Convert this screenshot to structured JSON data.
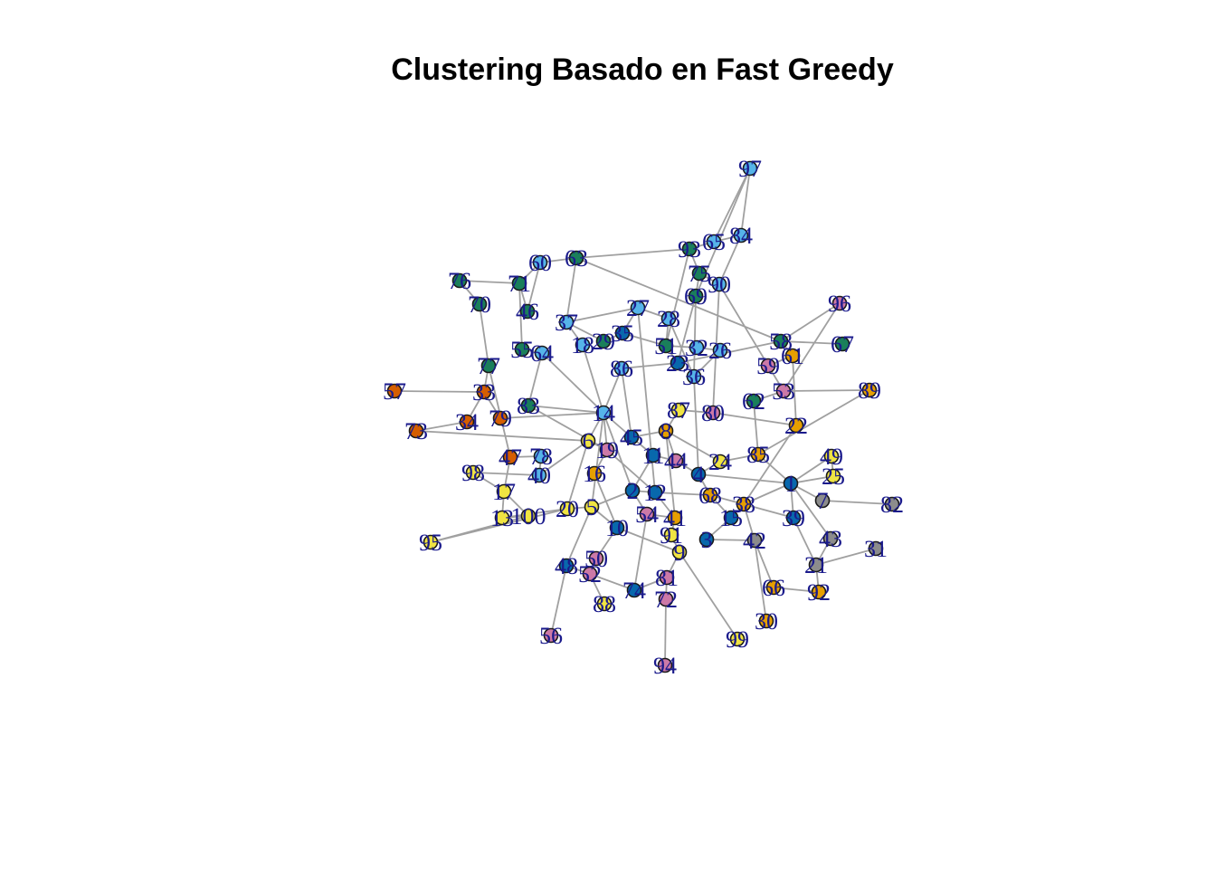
{
  "title": "Clustering Basado en Fast Greedy",
  "colors": {
    "c1": "#56b4e9",
    "c2": "#1a7f5a",
    "c3": "#d55e00",
    "c4": "#f0e442",
    "c5": "#0868ac",
    "c6": "#cc79a7",
    "c7": "#e69f00",
    "c8": "#8c8c8c",
    "edge": "#a0a0a0",
    "label": "#1a1a8c"
  },
  "nodes": [
    {
      "id": "97",
      "c": "c1"
    },
    {
      "id": "84",
      "c": "c1"
    },
    {
      "id": "65",
      "c": "c1"
    },
    {
      "id": "93",
      "c": "c2"
    },
    {
      "id": "60",
      "c": "c1"
    },
    {
      "id": "63",
      "c": "c2"
    },
    {
      "id": "75",
      "c": "c2"
    },
    {
      "id": "90",
      "c": "c1"
    },
    {
      "id": "76",
      "c": "c2"
    },
    {
      "id": "71",
      "c": "c2"
    },
    {
      "id": "69",
      "c": "c2"
    },
    {
      "id": "96",
      "c": "c6"
    },
    {
      "id": "70",
      "c": "c2"
    },
    {
      "id": "46",
      "c": "c2"
    },
    {
      "id": "27",
      "c": "c1"
    },
    {
      "id": "37",
      "c": "c1"
    },
    {
      "id": "28",
      "c": "c1"
    },
    {
      "id": "35",
      "c": "c5"
    },
    {
      "id": "58",
      "c": "c2"
    },
    {
      "id": "67",
      "c": "c2"
    },
    {
      "id": "55",
      "c": "c2"
    },
    {
      "id": "64",
      "c": "c1"
    },
    {
      "id": "18",
      "c": "c1"
    },
    {
      "id": "29",
      "c": "c2"
    },
    {
      "id": "51",
      "c": "c2"
    },
    {
      "id": "32",
      "c": "c1"
    },
    {
      "id": "26",
      "c": "c1"
    },
    {
      "id": "23",
      "c": "c5"
    },
    {
      "id": "59",
      "c": "c6"
    },
    {
      "id": "61",
      "c": "c7"
    },
    {
      "id": "77",
      "c": "c2"
    },
    {
      "id": "86",
      "c": "c1"
    },
    {
      "id": "36",
      "c": "c1"
    },
    {
      "id": "57",
      "c": "c3"
    },
    {
      "id": "33",
      "c": "c3"
    },
    {
      "id": "53",
      "c": "c6"
    },
    {
      "id": "89",
      "c": "c7"
    },
    {
      "id": "83",
      "c": "c2"
    },
    {
      "id": "14",
      "c": "c1"
    },
    {
      "id": "87",
      "c": "c4"
    },
    {
      "id": "80",
      "c": "c6"
    },
    {
      "id": "62",
      "c": "c2"
    },
    {
      "id": "34",
      "c": "c3"
    },
    {
      "id": "79",
      "c": "c3"
    },
    {
      "id": "22",
      "c": "c7"
    },
    {
      "id": "73",
      "c": "c3"
    },
    {
      "id": "8",
      "c": "c7"
    },
    {
      "id": "45",
      "c": "c5"
    },
    {
      "id": "6",
      "c": "c4"
    },
    {
      "id": "19",
      "c": "c6"
    },
    {
      "id": "47",
      "c": "c3"
    },
    {
      "id": "78",
      "c": "c1"
    },
    {
      "id": "11",
      "c": "c5"
    },
    {
      "id": "44",
      "c": "c6"
    },
    {
      "id": "85",
      "c": "c7"
    },
    {
      "id": "49",
      "c": "c4"
    },
    {
      "id": "98",
      "c": "c4"
    },
    {
      "id": "40",
      "c": "c1"
    },
    {
      "id": "24",
      "c": "c4"
    },
    {
      "id": "4",
      "c": "c5"
    },
    {
      "id": "16",
      "c": "c7"
    },
    {
      "id": "1",
      "c": "c5"
    },
    {
      "id": "25",
      "c": "c4"
    },
    {
      "id": "17",
      "c": "c4"
    },
    {
      "id": "2",
      "c": "c5"
    },
    {
      "id": "12",
      "c": "c5"
    },
    {
      "id": "68",
      "c": "c7"
    },
    {
      "id": "7",
      "c": "c8"
    },
    {
      "id": "82",
      "c": "c8"
    },
    {
      "id": "20",
      "c": "c4"
    },
    {
      "id": "5",
      "c": "c4"
    },
    {
      "id": "38",
      "c": "c7"
    },
    {
      "id": "13",
      "c": "c4"
    },
    {
      "id": "100",
      "c": "c4"
    },
    {
      "id": "54",
      "c": "c6"
    },
    {
      "id": "41",
      "c": "c7"
    },
    {
      "id": "15",
      "c": "c5"
    },
    {
      "id": "39",
      "c": "c5"
    },
    {
      "id": "10",
      "c": "c5"
    },
    {
      "id": "91",
      "c": "c4"
    },
    {
      "id": "95",
      "c": "c4"
    },
    {
      "id": "3",
      "c": "c5"
    },
    {
      "id": "42",
      "c": "c8"
    },
    {
      "id": "43",
      "c": "c8"
    },
    {
      "id": "31",
      "c": "c8"
    },
    {
      "id": "9",
      "c": "c4"
    },
    {
      "id": "48",
      "c": "c5"
    },
    {
      "id": "50",
      "c": "c6"
    },
    {
      "id": "52",
      "c": "c6"
    },
    {
      "id": "21",
      "c": "c8"
    },
    {
      "id": "81",
      "c": "c6"
    },
    {
      "id": "66",
      "c": "c7"
    },
    {
      "id": "92",
      "c": "c7"
    },
    {
      "id": "74",
      "c": "c5"
    },
    {
      "id": "88",
      "c": "c4"
    },
    {
      "id": "72",
      "c": "c6"
    },
    {
      "id": "30",
      "c": "c7"
    },
    {
      "id": "56",
      "c": "c6"
    },
    {
      "id": "99",
      "c": "c4"
    },
    {
      "id": "94",
      "c": "c6"
    }
  ],
  "edges": [
    [
      "97",
      "84"
    ],
    [
      "97",
      "65"
    ],
    [
      "97",
      "69"
    ],
    [
      "84",
      "65"
    ],
    [
      "84",
      "90"
    ],
    [
      "65",
      "93"
    ],
    [
      "93",
      "63"
    ],
    [
      "93",
      "75"
    ],
    [
      "93",
      "51"
    ],
    [
      "63",
      "60"
    ],
    [
      "63",
      "37"
    ],
    [
      "63",
      "58"
    ],
    [
      "60",
      "71"
    ],
    [
      "60",
      "46"
    ],
    [
      "75",
      "90"
    ],
    [
      "75",
      "69"
    ],
    [
      "69",
      "36"
    ],
    [
      "69",
      "23"
    ],
    [
      "90",
      "80"
    ],
    [
      "90",
      "53"
    ],
    [
      "76",
      "70"
    ],
    [
      "76",
      "71"
    ],
    [
      "71",
      "55"
    ],
    [
      "71",
      "46"
    ],
    [
      "70",
      "77"
    ],
    [
      "77",
      "33"
    ],
    [
      "77",
      "47"
    ],
    [
      "96",
      "58"
    ],
    [
      "96",
      "53"
    ],
    [
      "67",
      "58"
    ],
    [
      "58",
      "23"
    ],
    [
      "58",
      "61"
    ],
    [
      "27",
      "28"
    ],
    [
      "27",
      "35"
    ],
    [
      "27",
      "37"
    ],
    [
      "27",
      "12"
    ],
    [
      "28",
      "51"
    ],
    [
      "28",
      "36"
    ],
    [
      "37",
      "29"
    ],
    [
      "37",
      "18"
    ],
    [
      "35",
      "29"
    ],
    [
      "35",
      "51"
    ],
    [
      "18",
      "14"
    ],
    [
      "55",
      "64"
    ],
    [
      "64",
      "83"
    ],
    [
      "64",
      "14"
    ],
    [
      "51",
      "23"
    ],
    [
      "51",
      "32"
    ],
    [
      "32",
      "26"
    ],
    [
      "23",
      "86"
    ],
    [
      "86",
      "14"
    ],
    [
      "86",
      "45"
    ],
    [
      "36",
      "4"
    ],
    [
      "59",
      "61"
    ],
    [
      "61",
      "22"
    ],
    [
      "53",
      "89"
    ],
    [
      "53",
      "62"
    ],
    [
      "62",
      "85"
    ],
    [
      "57",
      "33"
    ],
    [
      "33",
      "34"
    ],
    [
      "33",
      "79"
    ],
    [
      "34",
      "73"
    ],
    [
      "79",
      "14"
    ],
    [
      "73",
      "6"
    ],
    [
      "83",
      "14"
    ],
    [
      "83",
      "19"
    ],
    [
      "14",
      "6"
    ],
    [
      "14",
      "19"
    ],
    [
      "14",
      "45"
    ],
    [
      "14",
      "5"
    ],
    [
      "14",
      "2"
    ],
    [
      "87",
      "8"
    ],
    [
      "87",
      "80"
    ],
    [
      "80",
      "22"
    ],
    [
      "8",
      "45"
    ],
    [
      "8",
      "44"
    ],
    [
      "8",
      "24"
    ],
    [
      "45",
      "11"
    ],
    [
      "6",
      "19"
    ],
    [
      "6",
      "40"
    ],
    [
      "6",
      "20"
    ],
    [
      "19",
      "16"
    ],
    [
      "19",
      "12"
    ],
    [
      "47",
      "78"
    ],
    [
      "47",
      "17"
    ],
    [
      "78",
      "40"
    ],
    [
      "98",
      "40"
    ],
    [
      "98",
      "17"
    ],
    [
      "11",
      "44"
    ],
    [
      "11",
      "2"
    ],
    [
      "44",
      "4"
    ],
    [
      "4",
      "24"
    ],
    [
      "4",
      "68"
    ],
    [
      "4",
      "1"
    ],
    [
      "24",
      "85"
    ],
    [
      "85",
      "1"
    ],
    [
      "49",
      "1"
    ],
    [
      "49",
      "25"
    ],
    [
      "1",
      "25"
    ],
    [
      "1",
      "7"
    ],
    [
      "1",
      "39"
    ],
    [
      "1",
      "38"
    ],
    [
      "1",
      "43"
    ],
    [
      "7",
      "82"
    ],
    [
      "17",
      "100"
    ],
    [
      "17",
      "13"
    ],
    [
      "13",
      "100"
    ],
    [
      "13",
      "20"
    ],
    [
      "95",
      "100"
    ],
    [
      "95",
      "20"
    ],
    [
      "20",
      "5"
    ],
    [
      "5",
      "2"
    ],
    [
      "5",
      "10"
    ],
    [
      "5",
      "48"
    ],
    [
      "2",
      "12"
    ],
    [
      "2",
      "54"
    ],
    [
      "12",
      "68"
    ],
    [
      "12",
      "41"
    ],
    [
      "68",
      "38"
    ],
    [
      "68",
      "15"
    ],
    [
      "38",
      "42"
    ],
    [
      "38",
      "39"
    ],
    [
      "15",
      "3"
    ],
    [
      "39",
      "21"
    ],
    [
      "43",
      "21"
    ],
    [
      "31",
      "21"
    ],
    [
      "41",
      "54"
    ],
    [
      "41",
      "91"
    ],
    [
      "91",
      "9"
    ],
    [
      "9",
      "81"
    ],
    [
      "9",
      "99"
    ],
    [
      "9",
      "10"
    ],
    [
      "10",
      "50"
    ],
    [
      "50",
      "52"
    ],
    [
      "48",
      "52"
    ],
    [
      "52",
      "88"
    ],
    [
      "52",
      "74"
    ],
    [
      "81",
      "72"
    ],
    [
      "72",
      "94"
    ],
    [
      "74",
      "81"
    ],
    [
      "66",
      "92"
    ],
    [
      "66",
      "42"
    ],
    [
      "42",
      "30"
    ],
    [
      "56",
      "48"
    ],
    [
      "92",
      "21"
    ],
    [
      "3",
      "42"
    ],
    [
      "54",
      "74"
    ],
    [
      "16",
      "10"
    ],
    [
      "22",
      "38"
    ],
    [
      "89",
      "85"
    ],
    [
      "26",
      "36"
    ],
    [
      "8",
      "41"
    ]
  ]
}
